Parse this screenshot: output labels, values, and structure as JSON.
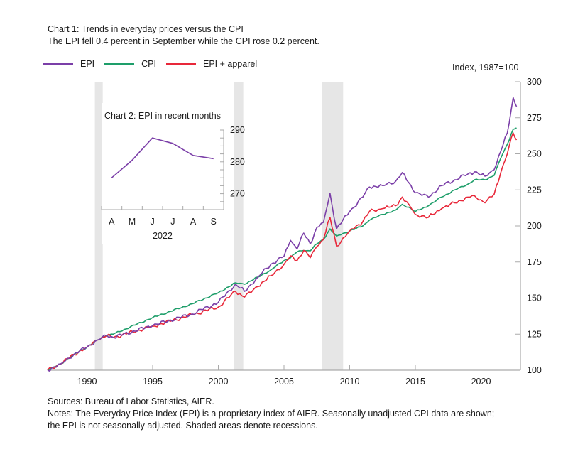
{
  "chart_data": [
    {
      "type": "line",
      "title": "Chart 1: Trends in everyday prices versus the CPI",
      "subtitle": "The EPI fell 0.4 percent in September while the CPI rose 0.2 percent.",
      "ylabel": "Index, 1987=100",
      "xlabel": "",
      "xlim": [
        1987,
        2023
      ],
      "ylim": [
        100,
        300
      ],
      "x_ticks": [
        1990,
        1995,
        2000,
        2005,
        2010,
        2015,
        2020
      ],
      "x_tick_labels": [
        "1990",
        "1995",
        "2000",
        "2005",
        "2010",
        "2015",
        "2020"
      ],
      "y_ticks": [
        100,
        125,
        150,
        175,
        200,
        225,
        250,
        275,
        300
      ],
      "y_tick_labels": [
        "100",
        "125",
        "150",
        "175",
        "200",
        "225",
        "250",
        "275",
        "300"
      ],
      "y_axis_side": "right",
      "legend_position": "top-left",
      "grid": false,
      "recessions": [
        [
          1990.6,
          1991.2
        ],
        [
          2001.2,
          2001.9
        ],
        [
          2007.9,
          2009.5
        ]
      ],
      "series": [
        {
          "name": "EPI",
          "color": "#7b3fa8",
          "x": [
            1987,
            1988,
            1989,
            1990,
            1990.8,
            1991.5,
            1992,
            1995,
            1998,
            2000,
            2001.3,
            2002,
            2003,
            2004,
            2005,
            2005.5,
            2006,
            2006.5,
            2007,
            2007.5,
            2008,
            2008.5,
            2009,
            2010,
            2011,
            2011.5,
            2012.5,
            2013.5,
            2014,
            2014.5,
            2015,
            2016,
            2017,
            2018,
            2019,
            2019.5,
            2020.3,
            2021,
            2021.5,
            2022,
            2022.45,
            2022.7
          ],
          "values": [
            100,
            104.4,
            111,
            116,
            121,
            124,
            122.7,
            131,
            139,
            147,
            159.6,
            154.7,
            164.5,
            173.4,
            179,
            190,
            184,
            195,
            187.6,
            199,
            202.5,
            222.7,
            198,
            210,
            220,
            227,
            228,
            231,
            237,
            230,
            223,
            220,
            228,
            232,
            236,
            237.5,
            234.5,
            239,
            251.7,
            264.5,
            289,
            282.8
          ]
        },
        {
          "name": "CPI",
          "color": "#1e9e6a",
          "x": [
            1987,
            1988,
            1989,
            1990,
            1990.8,
            1991.5,
            1992,
            1995,
            1998,
            2000,
            2001.3,
            2002,
            2003,
            2004,
            2005,
            2005.5,
            2006,
            2006.5,
            2007,
            2007.5,
            2008,
            2008.5,
            2009,
            2010,
            2011,
            2011.5,
            2012.5,
            2013.5,
            2014,
            2014.5,
            2015,
            2016,
            2017,
            2018,
            2019,
            2019.5,
            2020.3,
            2021,
            2021.5,
            2022,
            2022.45,
            2022.7
          ],
          "values": [
            100,
            104.4,
            111,
            116,
            121,
            124,
            125,
            136.5,
            146,
            153.7,
            160.6,
            159.6,
            164.5,
            169.5,
            176,
            178,
            182,
            183,
            182.7,
            187.6,
            190.6,
            198,
            193,
            196.5,
            200,
            204,
            208,
            211,
            215,
            213,
            210,
            214,
            220,
            225,
            229,
            232,
            232,
            235,
            247,
            256.6,
            267,
            268
          ]
        },
        {
          "name": "EPI + apparel",
          "color": "#e8283a",
          "x": [
            1987,
            1988,
            1989,
            1990,
            1990.8,
            1991.5,
            1992,
            1995,
            1998,
            2000,
            2001.3,
            2002,
            2003,
            2004,
            2005,
            2005.5,
            2006,
            2006.5,
            2007,
            2007.5,
            2008,
            2008.5,
            2009,
            2010,
            2011,
            2011.5,
            2012.5,
            2013.5,
            2014,
            2014.5,
            2015,
            2016,
            2017,
            2018,
            2019,
            2019.5,
            2020.3,
            2021,
            2021.5,
            2022,
            2022.45,
            2022.7
          ],
          "values": [
            100,
            104.4,
            111,
            116,
            121,
            124,
            122.7,
            130.5,
            138.4,
            143.8,
            154.7,
            150.7,
            158,
            165.5,
            173.4,
            179.3,
            176,
            183,
            178,
            185.7,
            190.6,
            206,
            186,
            196.5,
            203,
            210,
            212,
            214,
            220,
            215,
            208,
            206,
            212,
            216,
            220,
            221,
            216,
            222,
            237,
            250,
            264.5,
            259.6
          ]
        }
      ]
    },
    {
      "type": "line",
      "title": "Chart 2: EPI in recent months",
      "xlabel": "2022",
      "categories": [
        "A",
        "M",
        "J",
        "J",
        "A",
        "S"
      ],
      "ylim": [
        265,
        290
      ],
      "y_ticks": [
        270,
        280,
        290
      ],
      "y_tick_labels": [
        "270",
        "280",
        "290"
      ],
      "y_minor_step": 2.5,
      "y_axis_side": "right",
      "series": [
        {
          "name": "EPI",
          "color": "#7b3fa8",
          "values": [
            275,
            280.5,
            287.5,
            285.8,
            282,
            281
          ]
        }
      ]
    }
  ],
  "header": {
    "title": "Chart 1: Trends in everyday prices versus the CPI",
    "subtitle": "The EPI fell 0.4 percent in September while the CPI rose 0.2 percent."
  },
  "legend": [
    {
      "label": "EPI",
      "color": "#7b3fa8"
    },
    {
      "label": "CPI",
      "color": "#1e9e6a"
    },
    {
      "label": "EPI + apparel",
      "color": "#e8283a"
    }
  ],
  "unit_label": "Index, 1987=100",
  "inset": {
    "title": "Chart 2: EPI in recent months",
    "year_label": "2022"
  },
  "footer": {
    "sources": "Sources: Bureau of Labor Statistics, AIER.",
    "notes_line1": "Notes: The Everyday Price Index (EPI) is a proprietary index of AIER. Seasonally unadjusted CPI data are shown;",
    "notes_line2": "the EPI is not seasonally adjusted. Shaded areas denote recessions."
  },
  "colors": {
    "recession_shade": "#e6e6e6",
    "axis": "#aaaaaa"
  }
}
